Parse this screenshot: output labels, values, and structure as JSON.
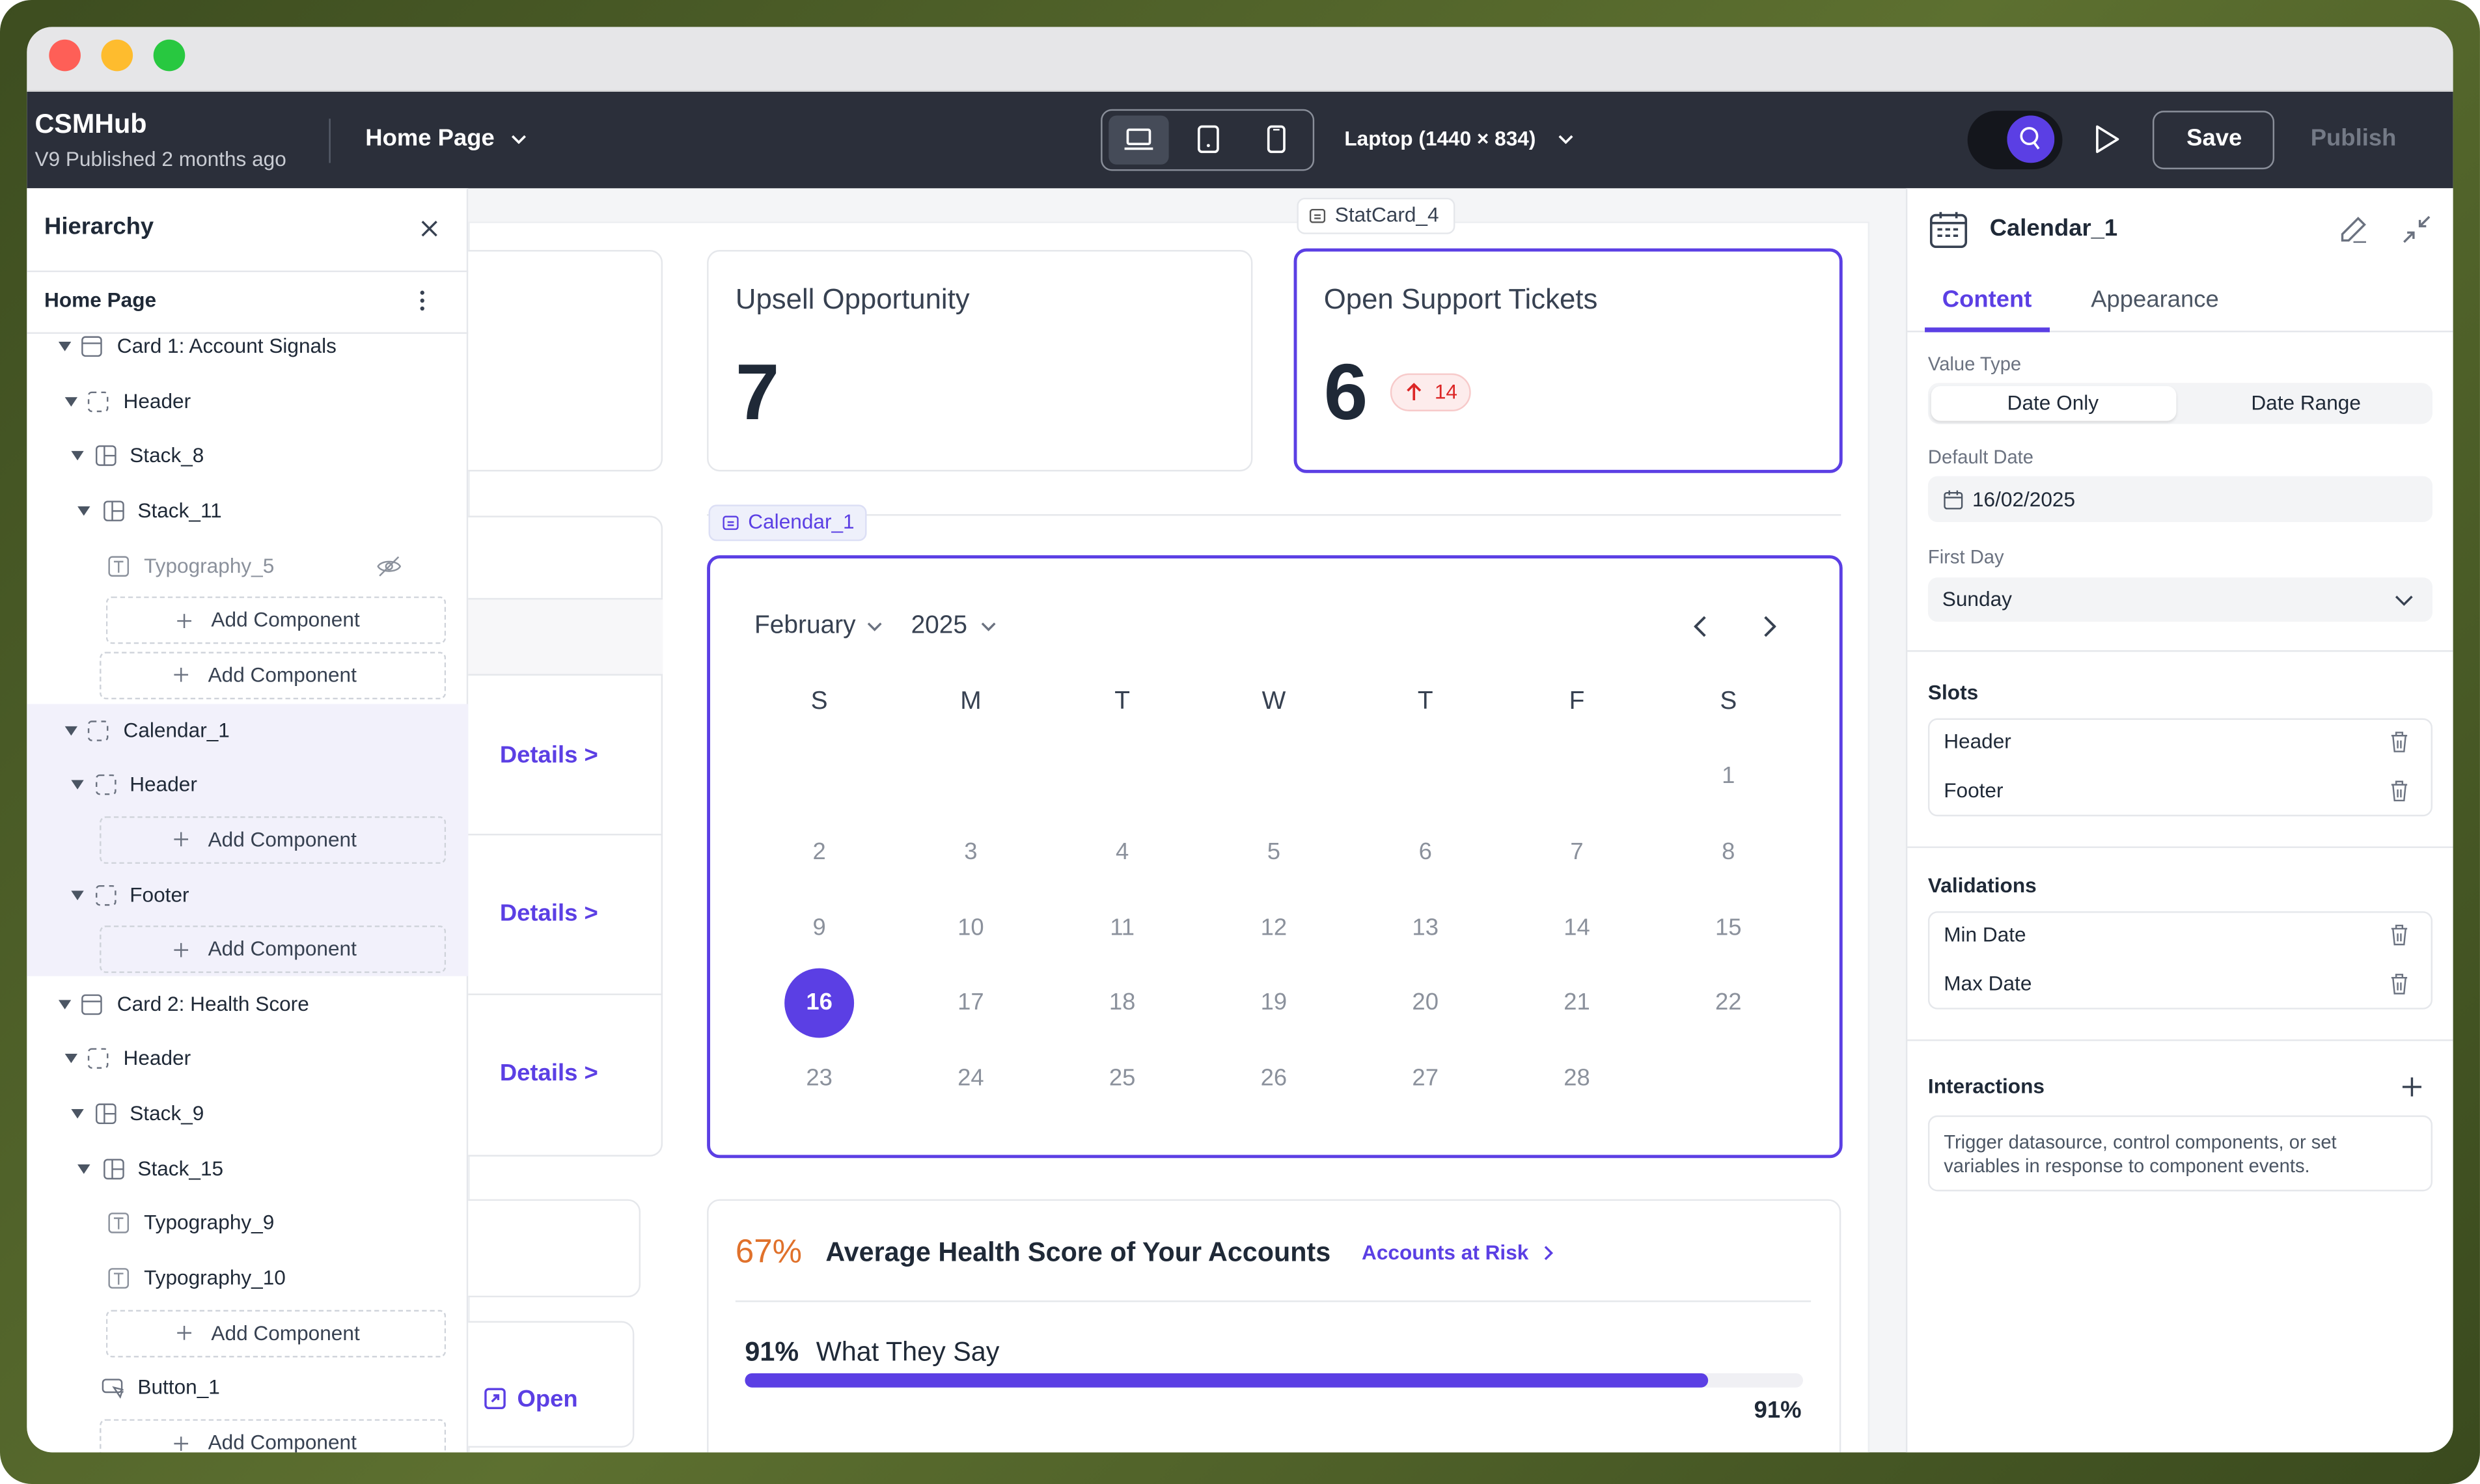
{
  "window": {
    "app_name": "CSMHub",
    "version": "V9 Published 2 months ago",
    "page": "Home Page",
    "device": "Laptop (1440 × 834)",
    "save": "Save",
    "publish": "Publish"
  },
  "hierarchy": {
    "title": "Hierarchy",
    "root": "Home Page",
    "items": [
      "Card 1: Account Signals",
      "Header",
      "Stack_8",
      "Stack_11",
      "Typography_5",
      "Add Component",
      "Add Component",
      "Calendar_1",
      "Header",
      "Add Component",
      "Footer",
      "Add Component",
      "Card 2: Health Score",
      "Header",
      "Stack_9",
      "Stack_15",
      "Typography_9",
      "Typography_10",
      "Add Component",
      "Button_1",
      "Add Component"
    ]
  },
  "canvas": {
    "stat_tag": "StatCard_4",
    "stat_cards": [
      {
        "title": "Upsell Opportunity",
        "value": "7"
      },
      {
        "title": "Open Support Tickets",
        "value": "6",
        "change": "14"
      }
    ],
    "calendar_tag": "Calendar_1",
    "calendar": {
      "month": "February",
      "year": "2025",
      "weekdays": [
        "S",
        "M",
        "T",
        "W",
        "T",
        "F",
        "S"
      ],
      "days": [
        1,
        2,
        3,
        4,
        5,
        6,
        7,
        8,
        9,
        10,
        11,
        12,
        13,
        14,
        15,
        16,
        17,
        18,
        19,
        20,
        21,
        22,
        23,
        24,
        25,
        26,
        27,
        28
      ],
      "selected": 16
    },
    "links": [
      "Details >",
      "Details >",
      "Details >",
      "Open"
    ],
    "health": {
      "score": "67%",
      "title": "Average Health Score of Your Accounts",
      "link": "Accounts at Risk",
      "metric_value": "91%",
      "metric_label": "What They Say",
      "progress": 91,
      "progress_label": "91%"
    }
  },
  "inspector": {
    "title": "Calendar_1",
    "tabs": [
      "Content",
      "Appearance"
    ],
    "value_type": {
      "label": "Value Type",
      "options": [
        "Date Only",
        "Date Range"
      ]
    },
    "default_date": {
      "label": "Default Date",
      "value": "16/02/2025"
    },
    "first_day": {
      "label": "First Day",
      "value": "Sunday"
    },
    "slots": {
      "title": "Slots",
      "items": [
        "Header",
        "Footer"
      ]
    },
    "validations": {
      "title": "Validations",
      "items": [
        "Min Date",
        "Max Date"
      ]
    },
    "interactions": {
      "title": "Interactions",
      "description": "Trigger datasource, control components, or set variables in response to component events."
    }
  }
}
